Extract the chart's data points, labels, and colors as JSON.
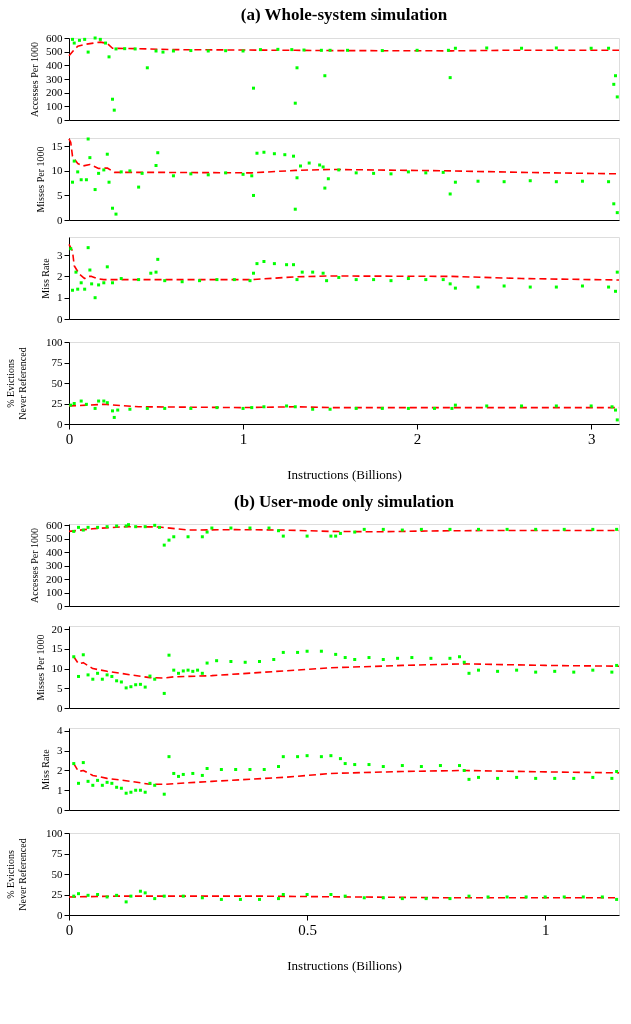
{
  "chart_data": [
    {
      "type": "scatter",
      "title": "(a) Whole-system simulation",
      "ylabel": "Accesses Per 1000",
      "xlim": [
        0,
        3.16
      ],
      "xticks": [
        0,
        1,
        2,
        3
      ],
      "ylim": [
        0,
        600
      ],
      "yticks": [
        0,
        100,
        200,
        300,
        400,
        500,
        600
      ],
      "tick_labels": "y",
      "grid": false,
      "series": [
        {
          "type": "scatter",
          "marker": "square",
          "color": "#00ff00",
          "x": [
            0.02,
            0.03,
            0.06,
            0.09,
            0.11,
            0.15,
            0.18,
            0.21,
            0.23,
            0.25,
            0.26,
            0.27,
            0.32,
            0.38,
            0.45,
            0.5,
            0.54,
            0.6,
            0.7,
            0.8,
            0.9,
            1.0,
            1.06,
            1.1,
            1.2,
            1.28,
            1.3,
            1.31,
            1.35,
            1.45,
            1.47,
            1.5,
            1.6,
            1.8,
            2.0,
            2.18,
            2.19,
            2.22,
            2.4,
            2.6,
            2.8,
            3.0,
            3.1,
            3.13,
            3.14,
            3.15
          ],
          "values": [
            590,
            563,
            583,
            590,
            497,
            600,
            590,
            563,
            462,
            152,
            72,
            520,
            522,
            520,
            382,
            505,
            497,
            505,
            508,
            505,
            507,
            505,
            233,
            515,
            517,
            515,
            123,
            382,
            512,
            510,
            324,
            510,
            510,
            508,
            510,
            510,
            310,
            525,
            527,
            525,
            527,
            525,
            525,
            261,
            324,
            169
          ]
        },
        {
          "type": "line",
          "line_style": "dashed",
          "color": "#ff0000",
          "x": [
            0,
            0.02,
            0.05,
            0.1,
            0.18,
            0.22,
            0.25,
            0.4,
            0.6,
            1.0,
            1.3,
            1.5,
            2.2,
            2.5,
            3.16
          ],
          "values": [
            470,
            500,
            540,
            555,
            570,
            560,
            525,
            522,
            515,
            512,
            510,
            508,
            506,
            510,
            510
          ]
        }
      ]
    },
    {
      "type": "scatter",
      "ylabel": "Misses Per 1000",
      "xlim": [
        0,
        3.16
      ],
      "xticks": [
        0,
        1,
        2,
        3
      ],
      "ylim": [
        0,
        16.7
      ],
      "yticks": [
        0,
        5,
        10,
        15
      ],
      "tick_labels": "y",
      "grid": false,
      "series": [
        {
          "type": "scatter",
          "marker": "square",
          "color": "#00ff00",
          "x": [
            0.02,
            0.03,
            0.05,
            0.07,
            0.1,
            0.11,
            0.12,
            0.15,
            0.17,
            0.2,
            0.22,
            0.23,
            0.25,
            0.27,
            0.3,
            0.35,
            0.4,
            0.42,
            0.5,
            0.51,
            0.6,
            0.7,
            0.8,
            0.9,
            1.0,
            1.05,
            1.06,
            1.08,
            1.12,
            1.18,
            1.24,
            1.29,
            1.3,
            1.31,
            1.33,
            1.38,
            1.44,
            1.46,
            1.47,
            1.49,
            1.55,
            1.65,
            1.75,
            1.85,
            1.95,
            2.05,
            2.15,
            2.19,
            2.22,
            2.35,
            2.5,
            2.65,
            2.8,
            2.95,
            3.1,
            3.13,
            3.15
          ],
          "values": [
            7.7,
            12,
            9.8,
            8.2,
            8.2,
            16.5,
            12.7,
            6.2,
            9.5,
            10.2,
            13.4,
            7.7,
            2.4,
            1.2,
            9.8,
            10,
            6.7,
            9.5,
            11.1,
            13.7,
            9,
            9.4,
            9.2,
            9.6,
            9.3,
            9,
            5,
            13.6,
            13.8,
            13.5,
            13.3,
            13,
            2.2,
            8.6,
            11,
            11.6,
            11.2,
            10.8,
            6.5,
            8.4,
            10.2,
            9.6,
            9.5,
            9.4,
            9.8,
            9.6,
            9.7,
            5.3,
            7.7,
            7.9,
            7.8,
            8,
            7.8,
            7.9,
            7.8,
            3.3,
            1.5
          ]
        },
        {
          "type": "line",
          "line_style": "dashed",
          "color": "#ff0000",
          "x": [
            0,
            0.01,
            0.02,
            0.05,
            0.08,
            0.12,
            0.17,
            0.22,
            0.26,
            0.5,
            1.05,
            1.3,
            1.5,
            2.2,
            2.6,
            3.16
          ],
          "values": [
            16.5,
            15.8,
            13,
            11.5,
            11,
            11.3,
            10.5,
            10.6,
            9.7,
            9.7,
            9.6,
            10.1,
            10.3,
            10,
            9.7,
            9.4
          ]
        }
      ]
    },
    {
      "type": "scatter",
      "ylabel": "Miss Rate",
      "xlim": [
        0,
        3.16
      ],
      "xticks": [
        0,
        1,
        2,
        3
      ],
      "ylim": [
        0,
        3.85
      ],
      "yticks": [
        0,
        1,
        2,
        3
      ],
      "tick_labels": "y",
      "grid": false,
      "series": [
        {
          "type": "scatter",
          "marker": "square",
          "color": "#00ff00",
          "x": [
            0.01,
            0.02,
            0.04,
            0.05,
            0.07,
            0.09,
            0.11,
            0.12,
            0.13,
            0.15,
            0.17,
            0.2,
            0.22,
            0.25,
            0.3,
            0.4,
            0.47,
            0.5,
            0.51,
            0.55,
            0.65,
            0.75,
            0.85,
            0.95,
            1.04,
            1.06,
            1.08,
            1.12,
            1.18,
            1.25,
            1.29,
            1.31,
            1.34,
            1.4,
            1.46,
            1.48,
            1.55,
            1.65,
            1.75,
            1.85,
            1.95,
            2.05,
            2.15,
            2.19,
            2.22,
            2.35,
            2.5,
            2.65,
            2.8,
            2.95,
            3.1,
            3.14,
            3.15
          ],
          "values": [
            3.3,
            1.35,
            2.2,
            1.4,
            1.7,
            1.4,
            3.35,
            2.3,
            1.65,
            1.0,
            1.6,
            1.7,
            2.45,
            1.7,
            1.9,
            1.85,
            2.15,
            2.2,
            2.8,
            1.8,
            1.75,
            1.8,
            1.85,
            1.85,
            1.8,
            2.15,
            2.6,
            2.7,
            2.6,
            2.55,
            2.55,
            1.85,
            2.2,
            2.2,
            2.15,
            1.8,
            1.95,
            1.85,
            1.85,
            1.8,
            1.9,
            1.85,
            1.85,
            1.65,
            1.45,
            1.5,
            1.55,
            1.5,
            1.5,
            1.55,
            1.5,
            1.3,
            2.2
          ]
        },
        {
          "type": "line",
          "line_style": "dashed",
          "color": "#ff0000",
          "x": [
            0,
            0.02,
            0.03,
            0.06,
            0.09,
            0.11,
            0.13,
            0.16,
            0.2,
            0.5,
            1.05,
            1.3,
            1.5,
            2.2,
            2.6,
            3.16
          ],
          "values": [
            3.5,
            3.2,
            2.5,
            2.1,
            1.9,
            2.0,
            2.0,
            1.9,
            1.85,
            1.85,
            1.85,
            1.98,
            2.02,
            2.0,
            1.9,
            1.83
          ]
        }
      ]
    },
    {
      "type": "scatter",
      "ylabel": "% Evictions Never Referenced",
      "xlabel": "Instructions (Billions)",
      "xlim": [
        0,
        3.16
      ],
      "xticks": [
        0,
        1,
        2,
        3
      ],
      "ylim": [
        0,
        100
      ],
      "yticks": [
        0,
        25,
        50,
        75,
        100
      ],
      "grid": false,
      "series": [
        {
          "type": "scatter",
          "marker": "square",
          "color": "#00ff00",
          "x": [
            0.01,
            0.03,
            0.07,
            0.1,
            0.15,
            0.17,
            0.2,
            0.22,
            0.25,
            0.26,
            0.28,
            0.35,
            0.45,
            0.55,
            0.7,
            0.85,
            1.0,
            1.05,
            1.12,
            1.25,
            1.3,
            1.4,
            1.5,
            1.65,
            1.8,
            1.95,
            2.1,
            2.2,
            2.22,
            2.4,
            2.6,
            2.8,
            3.0,
            3.12,
            3.14,
            3.15
          ],
          "values": [
            23,
            25,
            28,
            24,
            19,
            28,
            28,
            26,
            16,
            8,
            17,
            18,
            19,
            19,
            19,
            20,
            19,
            20,
            21,
            22,
            21,
            18,
            18,
            19,
            19,
            19,
            19,
            19,
            23,
            22,
            22,
            22,
            22,
            21,
            17,
            5
          ]
        },
        {
          "type": "line",
          "line_style": "dashed",
          "color": "#ff0000",
          "x": [
            0,
            0.2,
            0.4,
            1.0,
            1.3,
            1.5,
            2.0,
            2.2,
            3.16
          ],
          "values": [
            22,
            24,
            21,
            20,
            21,
            20,
            20,
            20,
            20
          ]
        }
      ]
    },
    {
      "type": "scatter",
      "title": "(b) User-mode only simulation",
      "ylabel": "Accesses Per 1000",
      "xlim": [
        0,
        1.155
      ],
      "xticks": [
        0,
        0.5,
        1
      ],
      "ylim": [
        0,
        610
      ],
      "yticks": [
        0,
        100,
        200,
        300,
        400,
        500,
        600
      ],
      "tick_labels": "y",
      "grid": false,
      "series": [
        {
          "type": "scatter",
          "marker": "square",
          "color": "#00ff00",
          "x": [
            0.01,
            0.02,
            0.03,
            0.04,
            0.06,
            0.08,
            0.1,
            0.12,
            0.125,
            0.14,
            0.16,
            0.18,
            0.19,
            0.2,
            0.21,
            0.22,
            0.25,
            0.28,
            0.29,
            0.3,
            0.34,
            0.38,
            0.42,
            0.44,
            0.45,
            0.5,
            0.55,
            0.56,
            0.57,
            0.6,
            0.62,
            0.66,
            0.7,
            0.74,
            0.8,
            0.86,
            0.92,
            0.98,
            1.04,
            1.1,
            1.15
          ],
          "values": [
            555,
            585,
            565,
            585,
            585,
            590,
            595,
            595,
            605,
            590,
            590,
            600,
            585,
            453,
            490,
            515,
            515,
            515,
            550,
            580,
            580,
            580,
            580,
            560,
            520,
            520,
            520,
            520,
            540,
            550,
            570,
            570,
            565,
            570,
            570,
            570,
            570,
            570,
            570,
            570,
            570
          ]
        },
        {
          "type": "line",
          "line_style": "dashed",
          "color": "#ff0000",
          "x": [
            0,
            0.05,
            0.12,
            0.19,
            0.25,
            0.35,
            0.45,
            0.55,
            0.65,
            0.75,
            0.9,
            1.155
          ],
          "values": [
            555,
            575,
            590,
            588,
            565,
            568,
            565,
            555,
            552,
            558,
            562,
            562
          ]
        }
      ]
    },
    {
      "type": "scatter",
      "ylabel": "Misses Per 1000",
      "xlim": [
        0,
        1.155
      ],
      "xticks": [
        0,
        0.5,
        1
      ],
      "ylim": [
        0,
        20.8
      ],
      "yticks": [
        0,
        5,
        10,
        15,
        20
      ],
      "tick_labels": "y",
      "grid": false,
      "series": [
        {
          "type": "scatter",
          "marker": "square",
          "color": "#00ff00",
          "x": [
            0.01,
            0.02,
            0.03,
            0.04,
            0.05,
            0.06,
            0.07,
            0.08,
            0.09,
            0.1,
            0.11,
            0.12,
            0.13,
            0.14,
            0.15,
            0.16,
            0.17,
            0.18,
            0.2,
            0.21,
            0.22,
            0.23,
            0.24,
            0.25,
            0.26,
            0.27,
            0.28,
            0.29,
            0.31,
            0.34,
            0.37,
            0.4,
            0.43,
            0.45,
            0.48,
            0.5,
            0.53,
            0.56,
            0.58,
            0.6,
            0.63,
            0.66,
            0.69,
            0.72,
            0.76,
            0.8,
            0.82,
            0.83,
            0.84,
            0.86,
            0.9,
            0.94,
            0.98,
            1.02,
            1.06,
            1.1,
            1.14,
            1.15
          ],
          "values": [
            13,
            8,
            13.5,
            8.4,
            7.3,
            8.8,
            7.3,
            8.4,
            8,
            6.9,
            6.6,
            5.1,
            5.4,
            5.9,
            6,
            5.3,
            8.1,
            7.3,
            3.7,
            13.4,
            9.6,
            8.8,
            9.4,
            9.6,
            9.3,
            9.6,
            8.8,
            11.4,
            12,
            11.8,
            11.6,
            11.8,
            12.3,
            14.1,
            14.1,
            14.4,
            14.4,
            13.6,
            12.8,
            12.3,
            12.8,
            12.3,
            12.6,
            12.8,
            12.6,
            12.6,
            13,
            11.6,
            8.8,
            9.6,
            9.3,
            9.6,
            9.1,
            9.3,
            9.1,
            9.6,
            9.1,
            10.8
          ]
        },
        {
          "type": "line",
          "line_style": "dashed",
          "color": "#ff0000",
          "x": [
            0.01,
            0.02,
            0.03,
            0.05,
            0.08,
            0.13,
            0.17,
            0.2,
            0.22,
            0.3,
            0.45,
            0.55,
            0.7,
            0.83,
            1.0,
            1.155
          ],
          "values": [
            13,
            11.2,
            11.5,
            10,
            9.3,
            8.4,
            7.7,
            7.6,
            7.9,
            8.2,
            9.4,
            10.2,
            10.8,
            11.2,
            10.8,
            10.6
          ]
        }
      ]
    },
    {
      "type": "scatter",
      "ylabel": "Miss Rate",
      "xlim": [
        0,
        1.155
      ],
      "xticks": [
        0,
        0.5,
        1
      ],
      "ylim": [
        0,
        4.15
      ],
      "yticks": [
        0,
        1,
        2,
        3,
        4
      ],
      "tick_labels": "y",
      "grid": false,
      "series": [
        {
          "type": "scatter",
          "marker": "square",
          "color": "#00ff00",
          "x": [
            0.01,
            0.02,
            0.03,
            0.04,
            0.05,
            0.06,
            0.07,
            0.08,
            0.09,
            0.1,
            0.11,
            0.12,
            0.13,
            0.14,
            0.15,
            0.16,
            0.17,
            0.18,
            0.2,
            0.21,
            0.22,
            0.23,
            0.24,
            0.26,
            0.28,
            0.29,
            0.32,
            0.35,
            0.38,
            0.41,
            0.44,
            0.45,
            0.48,
            0.5,
            0.53,
            0.55,
            0.57,
            0.58,
            0.6,
            0.63,
            0.66,
            0.7,
            0.74,
            0.78,
            0.82,
            0.83,
            0.84,
            0.86,
            0.9,
            0.94,
            0.98,
            1.02,
            1.06,
            1.1,
            1.14,
            1.15
          ],
          "values": [
            2.35,
            1.35,
            2.4,
            1.45,
            1.25,
            1.5,
            1.25,
            1.4,
            1.35,
            1.15,
            1.1,
            0.85,
            0.9,
            1.0,
            1.0,
            0.9,
            1.35,
            1.25,
            0.8,
            2.7,
            1.85,
            1.7,
            1.8,
            1.85,
            1.75,
            2.1,
            2.05,
            2.05,
            2.05,
            2.05,
            2.2,
            2.7,
            2.7,
            2.75,
            2.7,
            2.75,
            2.6,
            2.35,
            2.3,
            2.3,
            2.2,
            2.25,
            2.2,
            2.25,
            2.25,
            2.0,
            1.55,
            1.65,
            1.6,
            1.65,
            1.6,
            1.6,
            1.6,
            1.65,
            1.6,
            1.95
          ]
        },
        {
          "type": "line",
          "line_style": "dashed",
          "color": "#ff0000",
          "x": [
            0.01,
            0.02,
            0.03,
            0.05,
            0.08,
            0.13,
            0.17,
            0.2,
            0.3,
            0.45,
            0.55,
            0.7,
            0.83,
            1.0,
            1.155
          ],
          "values": [
            2.35,
            1.95,
            2.0,
            1.75,
            1.6,
            1.45,
            1.3,
            1.3,
            1.45,
            1.65,
            1.85,
            1.95,
            2.0,
            1.93,
            1.88
          ]
        }
      ]
    },
    {
      "type": "scatter",
      "ylabel": "% Evictions Never Referenced",
      "xlabel": "Instructions (Billions)",
      "xlim": [
        0,
        1.155
      ],
      "xticks": [
        0,
        0.5,
        1
      ],
      "ylim": [
        0,
        100
      ],
      "yticks": [
        0,
        25,
        50,
        75,
        100
      ],
      "grid": false,
      "series": [
        {
          "type": "scatter",
          "marker": "square",
          "color": "#00ff00",
          "x": [
            0.01,
            0.02,
            0.04,
            0.06,
            0.08,
            0.1,
            0.12,
            0.13,
            0.15,
            0.16,
            0.18,
            0.2,
            0.24,
            0.28,
            0.32,
            0.36,
            0.4,
            0.44,
            0.45,
            0.5,
            0.55,
            0.58,
            0.62,
            0.66,
            0.7,
            0.75,
            0.8,
            0.84,
            0.88,
            0.92,
            0.96,
            1.0,
            1.04,
            1.08,
            1.12,
            1.15
          ],
          "values": [
            23,
            26,
            24,
            25,
            22,
            24,
            16,
            23,
            29,
            27,
            20,
            23,
            23,
            21,
            19,
            19,
            19,
            20,
            25,
            25,
            25,
            23,
            21,
            21,
            20,
            20,
            20,
            23,
            22,
            22,
            22,
            22,
            22,
            22,
            22,
            19
          ]
        },
        {
          "type": "line",
          "line_style": "dashed",
          "color": "#ff0000",
          "x": [
            0,
            0.1,
            0.2,
            0.4,
            0.6,
            0.8,
            1.0,
            1.155
          ],
          "values": [
            22,
            23,
            23,
            23,
            22,
            21,
            21,
            21
          ]
        }
      ]
    }
  ]
}
